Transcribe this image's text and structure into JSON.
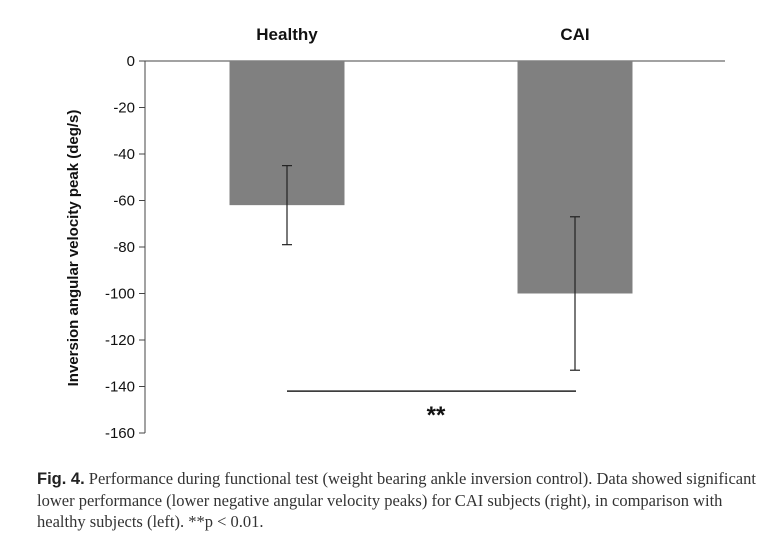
{
  "chart_data": {
    "type": "bar",
    "categories": [
      "Healthy",
      "CAI"
    ],
    "values": [
      -62,
      -100
    ],
    "error_high": [
      -45,
      -67
    ],
    "error_low": [
      -79,
      -133
    ],
    "ylabel": "Inversion angular velocity peak (deg/s)",
    "xlabel": "",
    "ylim": [
      -160,
      0
    ],
    "yticks": [
      0,
      -20,
      -40,
      -60,
      -80,
      -100,
      -120,
      -140,
      -160
    ],
    "category_labels_position": "top",
    "grid": false,
    "legend": "none",
    "bar_color": "#808080",
    "significance": {
      "label": "**",
      "between": [
        "Healthy",
        "CAI"
      ],
      "at_value": -142
    }
  },
  "caption": {
    "label": "Fig. 4.",
    "text": " Performance during functional test (weight bearing ankle inversion control). Data showed significant lower performance (lower negative angular velocity peaks) for CAI subjects (right), in comparison with healthy subjects (left). **p < 0.01."
  }
}
